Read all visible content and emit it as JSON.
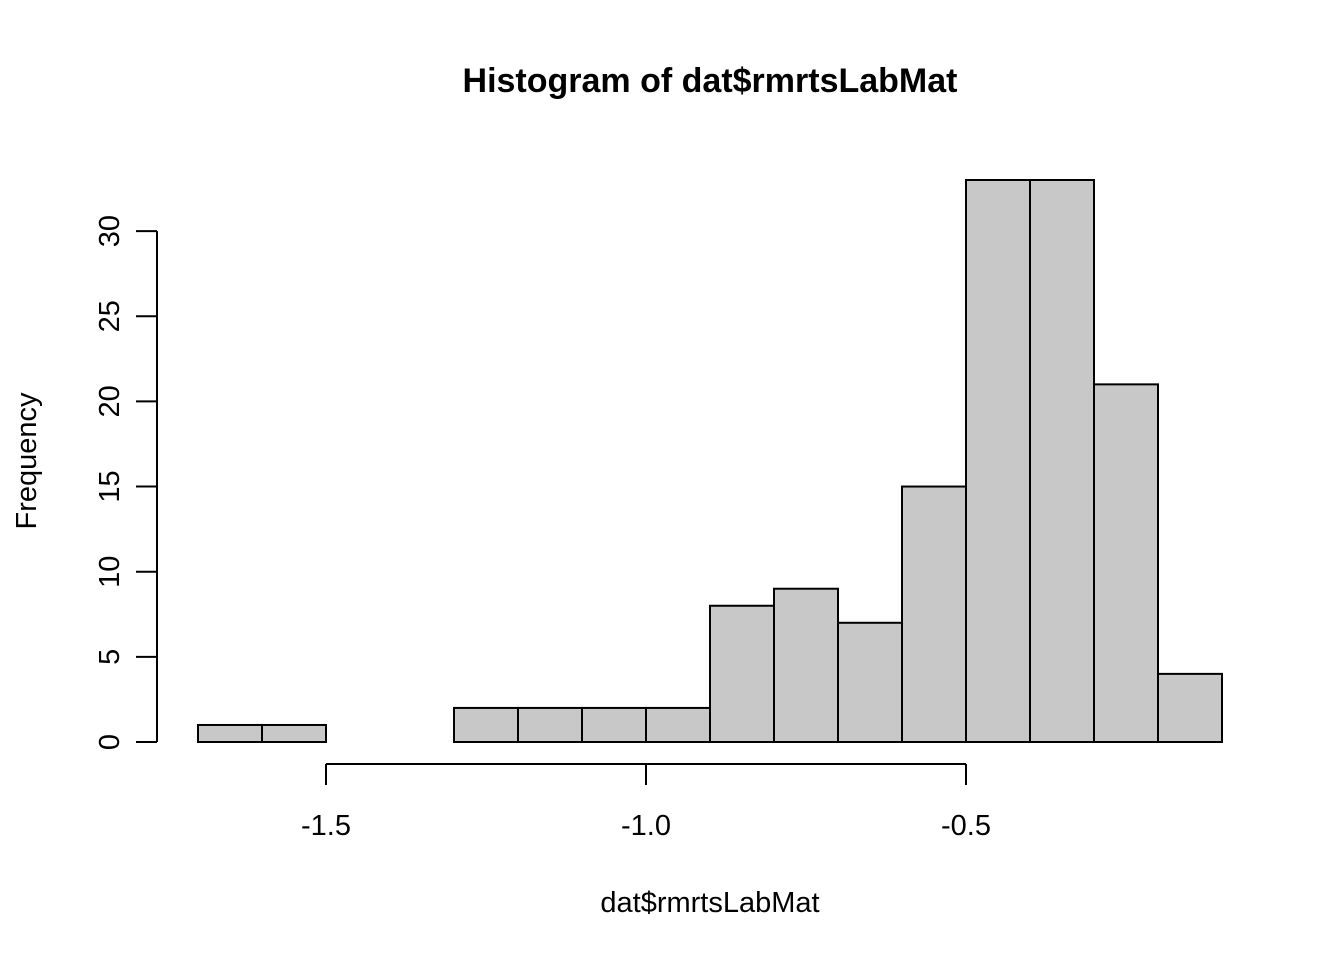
{
  "chart_data": {
    "type": "bar",
    "title": "Histogram of dat$rmrtsLabMat",
    "xlabel": "dat$rmrtsLabMat",
    "ylabel": "Frequency",
    "bin_edges": [
      -1.7,
      -1.6,
      -1.5,
      -1.4,
      -1.3,
      -1.2,
      -1.1,
      -1.0,
      -0.9,
      -0.8,
      -0.7,
      -0.6,
      -0.5,
      -0.4,
      -0.3,
      -0.2,
      -0.1
    ],
    "values": [
      1,
      1,
      0,
      0,
      2,
      2,
      2,
      2,
      8,
      9,
      7,
      15,
      33,
      33,
      21,
      4
    ],
    "x_ticks": [
      -1.5,
      -1.0,
      -0.5
    ],
    "x_tick_labels": [
      "-1.5",
      "-1.0",
      "-0.5"
    ],
    "y_ticks": [
      0,
      5,
      10,
      15,
      20,
      25,
      30
    ],
    "y_tick_labels": [
      "0",
      "5",
      "10",
      "15",
      "20",
      "25",
      "30"
    ],
    "xlim": [
      -1.7,
      -0.1
    ],
    "ylim": [
      0,
      33
    ],
    "bar_color": "#c8c8c8",
    "edge_color": "#000000",
    "grid": false
  }
}
